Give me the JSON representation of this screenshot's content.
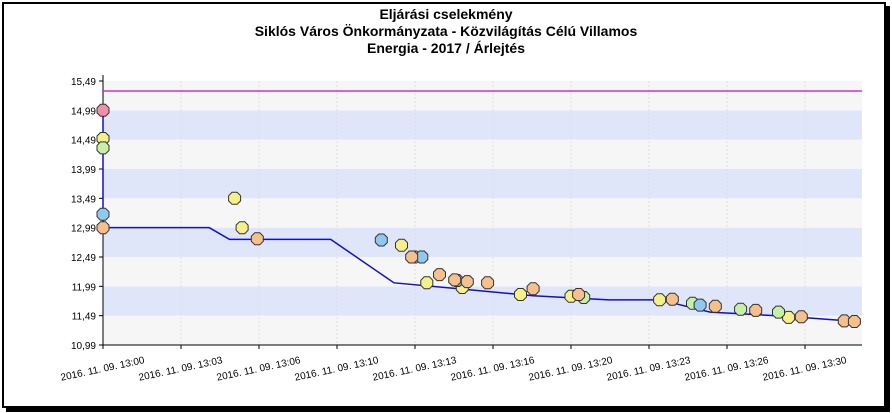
{
  "chart_data": {
    "type": "scatter",
    "title": [
      "Eljárási cselekmény",
      "Siklós Város Önkormányzata - Közvilágítás Célú Villamos",
      "Energia - 2017 / Árlejtés"
    ],
    "xlabel": "",
    "ylabel": "",
    "y_ticks": [
      "10,99",
      "11,49",
      "11,99",
      "12,49",
      "12,99",
      "13,49",
      "13,99",
      "14,49",
      "14,99",
      "15,49"
    ],
    "ylim": [
      10.99,
      15.49
    ],
    "x_ticks": [
      "2016. 11. 09. 13:00",
      "2016. 11. 09. 13:03",
      "2016. 11. 09. 13:06",
      "2016. 11. 09. 13:10",
      "2016. 11. 09. 13:13",
      "2016. 11. 09. 13:16",
      "2016. 11. 09. 13:20",
      "2016. 11. 09. 13:23",
      "2016. 11. 09. 13:26",
      "2016. 11. 09. 13:30"
    ],
    "xlim": [
      "13:00",
      "13:30"
    ],
    "reference_line": {
      "value": 15.32,
      "color": "#cc33cc"
    },
    "best_price_line": [
      [
        0.0,
        14.99
      ],
      [
        0.0,
        12.99
      ],
      [
        4.2,
        12.99
      ],
      [
        5.0,
        12.79
      ],
      [
        8.5,
        12.79
      ],
      [
        9.0,
        12.79
      ],
      [
        11.5,
        12.05
      ],
      [
        14.0,
        11.95
      ],
      [
        17.0,
        11.83
      ],
      [
        20.0,
        11.76
      ],
      [
        22.0,
        11.76
      ],
      [
        24.0,
        11.55
      ],
      [
        27.0,
        11.48
      ],
      [
        29.5,
        11.4
      ]
    ],
    "series": [
      {
        "name": "",
        "color": "#f090a8",
        "points": [
          [
            0.0,
            14.99
          ]
        ]
      },
      {
        "name": "",
        "color": "#f5f08c",
        "points": [
          [
            0.0,
            14.51
          ],
          [
            5.2,
            13.49
          ],
          [
            5.5,
            12.99
          ],
          [
            11.8,
            12.69
          ],
          [
            12.3,
            12.49
          ],
          [
            12.8,
            12.05
          ],
          [
            14.2,
            11.97
          ],
          [
            16.5,
            11.85
          ],
          [
            18.5,
            11.82
          ],
          [
            22.0,
            11.76
          ],
          [
            27.1,
            11.46
          ]
        ]
      },
      {
        "name": "",
        "color": "#c6f0a8",
        "points": [
          [
            0.0,
            14.35
          ],
          [
            19.0,
            11.8
          ],
          [
            23.3,
            11.7
          ],
          [
            25.2,
            11.6
          ],
          [
            26.7,
            11.55
          ]
        ]
      },
      {
        "name": "",
        "color": "#90c8f0",
        "points": [
          [
            0.0,
            13.22
          ],
          [
            11.0,
            12.78
          ],
          [
            12.6,
            12.49
          ],
          [
            14.0,
            12.09
          ],
          [
            23.6,
            11.67
          ]
        ]
      },
      {
        "name": "",
        "color": "#f6c08c",
        "points": [
          [
            0.0,
            12.99
          ],
          [
            6.1,
            12.8
          ],
          [
            12.2,
            12.49
          ],
          [
            13.3,
            12.19
          ],
          [
            13.9,
            12.1
          ],
          [
            14.4,
            12.07
          ],
          [
            15.2,
            12.05
          ],
          [
            17.0,
            11.95
          ],
          [
            18.8,
            11.85
          ],
          [
            22.5,
            11.77
          ],
          [
            24.2,
            11.65
          ],
          [
            25.8,
            11.58
          ],
          [
            27.6,
            11.47
          ],
          [
            29.3,
            11.4
          ],
          [
            29.7,
            11.39
          ]
        ]
      }
    ]
  }
}
